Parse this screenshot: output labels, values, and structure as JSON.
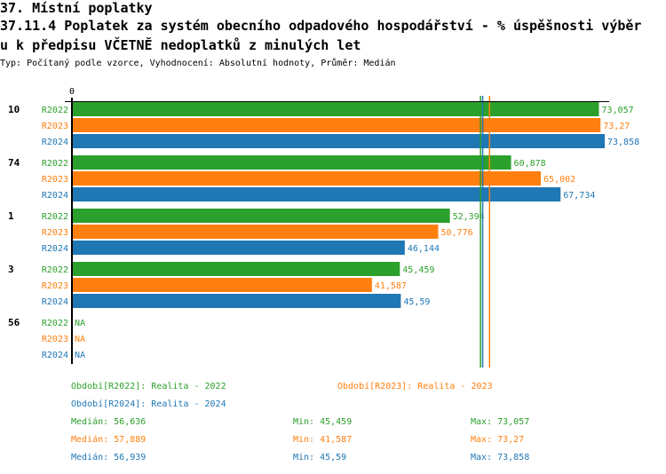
{
  "header": {
    "title": "37. Místní poplatky",
    "subtitle_line1": "37.11.4 Poplatek za systém obecního odpadového hospodářství  - % úspěšnosti výběr",
    "subtitle_line2": "u k předpisu VČETNĚ nedoplatků z minulých let",
    "info": "Typ: Počítaný podle vzorce, Vyhodnocení: Absolutní hodnoty, Průměr: Medián"
  },
  "chart_data": {
    "type": "bar",
    "orientation": "horizontal",
    "axis_zero_label": "0",
    "categories": [
      "10",
      "74",
      "1",
      "3",
      "56"
    ],
    "series": [
      {
        "name": "R2022",
        "color": "#2ca02c",
        "values": [
          73.057,
          60.878,
          52.394,
          45.459,
          null
        ],
        "labels": [
          "73,057",
          "60,878",
          "52,394",
          "45,459",
          "NA"
        ]
      },
      {
        "name": "R2023",
        "color": "#ff7f0e",
        "values": [
          73.27,
          65.002,
          50.776,
          41.587,
          null
        ],
        "labels": [
          "73,27",
          "65,002",
          "50,776",
          "41,587",
          "NA"
        ]
      },
      {
        "name": "R2024",
        "color": "#1f77b4",
        "values": [
          73.858,
          67.734,
          46.144,
          45.59,
          null
        ],
        "labels": [
          "73,858",
          "67,734",
          "46,144",
          "45,59",
          "NA"
        ]
      }
    ],
    "medians": [
      56.636,
      57.889,
      56.939
    ],
    "xlim": [
      0,
      73.858
    ]
  },
  "legend": {
    "periods": [
      "Období[R2022]: Realita - 2022",
      "Období[R2023]: Realita - 2023",
      "Období[R2024]: Realita - 2024"
    ],
    "stats": [
      {
        "median": "Medián: 56,636",
        "min": "Min: 45,459",
        "max": "Max: 73,057"
      },
      {
        "median": "Medián: 57,889",
        "min": "Min: 41,587",
        "max": "Max: 73,27"
      },
      {
        "median": "Medián: 56,939",
        "min": "Min: 45,59",
        "max": "Max: 73,858"
      }
    ]
  }
}
